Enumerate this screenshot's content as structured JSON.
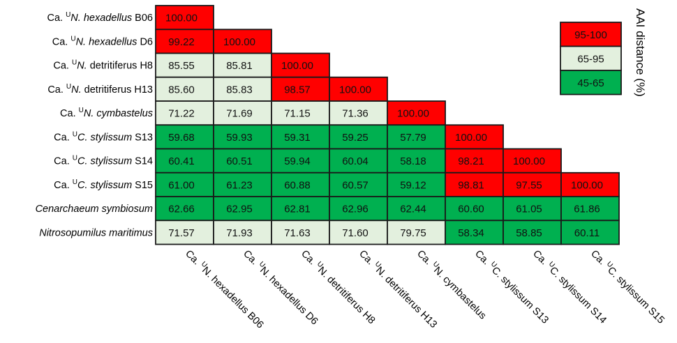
{
  "chart_data": {
    "type": "heatmap",
    "rows": [
      {
        "prefix": "Ca. ",
        "sup": "U",
        "italic": "N. hexadellus",
        "suffix": " B06"
      },
      {
        "prefix": "Ca. ",
        "sup": "U",
        "italic": "N. hexadellus",
        "suffix": " D6"
      },
      {
        "prefix": "Ca. ",
        "sup": "U",
        "italic": "N.",
        "suffix": " detritiferus H8"
      },
      {
        "prefix": "Ca. ",
        "sup": "U",
        "italic": "N.",
        "suffix": " detritiferus H13"
      },
      {
        "prefix": "Ca. ",
        "sup": "U",
        "italic": "N. cymbastelus",
        "suffix": ""
      },
      {
        "prefix": "Ca. ",
        "sup": "U",
        "italic": "C. stylissum",
        "suffix": " S13"
      },
      {
        "prefix": "Ca. ",
        "sup": "U",
        "italic": "C. stylissum",
        "suffix": " S14"
      },
      {
        "prefix": "Ca. ",
        "sup": "U",
        "italic": "C. stylissum",
        "suffix": " S15"
      },
      {
        "prefix": "",
        "sup": "",
        "italic": "Cenarchaeum symbiosum",
        "suffix": ""
      },
      {
        "prefix": "",
        "sup": "",
        "italic": "Nitrosopumilus maritimus",
        "suffix": ""
      }
    ],
    "columns": [
      {
        "pre": "Ca. ",
        "sup": "U",
        "post": "N. hexadellus B06"
      },
      {
        "pre": "Ca. ",
        "sup": "U",
        "post": "N. hexadellus D6"
      },
      {
        "pre": "Ca. ",
        "sup": "U",
        "post": "N. detritiferus H8"
      },
      {
        "pre": "Ca. ",
        "sup": "U",
        "post": "N. detritiferus H13"
      },
      {
        "pre": "Ca. ",
        "sup": "U",
        "post": "N. cymbastelus"
      },
      {
        "pre": "Ca. ",
        "sup": "U",
        "post": "C. stylissum S13"
      },
      {
        "pre": "Ca. ",
        "sup": "U",
        "post": "C. stylissum S14"
      },
      {
        "pre": "Ca. ",
        "sup": "U",
        "post": "C. stylissum S15"
      }
    ],
    "values": [
      [
        "100.00"
      ],
      [
        "99.22",
        "100.00"
      ],
      [
        "85.55",
        "85.81",
        "100.00"
      ],
      [
        "85.60",
        "85.83",
        "98.57",
        "100.00"
      ],
      [
        "71.22",
        "71.69",
        "71.15",
        "71.36",
        "100.00"
      ],
      [
        "59.68",
        "59.93",
        "59.31",
        "59.25",
        "57.79",
        "100.00"
      ],
      [
        "60.41",
        "60.51",
        "59.94",
        "60.04",
        "58.18",
        "98.21",
        "100.00"
      ],
      [
        "61.00",
        "61.23",
        "60.88",
        "60.57",
        "59.12",
        "98.81",
        "97.55",
        "100.00"
      ],
      [
        "62.66",
        "62.95",
        "62.81",
        "62.96",
        "62.44",
        "60.60",
        "61.05",
        "61.86"
      ],
      [
        "71.57",
        "71.93",
        "71.63",
        "71.60",
        "79.75",
        "58.34",
        "58.85",
        "60.11"
      ]
    ],
    "legend": {
      "title": "AAI distance (%)",
      "placement": "top-right",
      "bins": [
        {
          "label": "95-100",
          "min": 95,
          "max": 100,
          "color": "#ff0000"
        },
        {
          "label": "65-95",
          "min": 65,
          "max": 95,
          "color": "#e3f0de"
        },
        {
          "label": "45-65",
          "min": 45,
          "max": 65,
          "color": "#00b050"
        }
      ]
    },
    "border_color": "#1a1a1a"
  }
}
